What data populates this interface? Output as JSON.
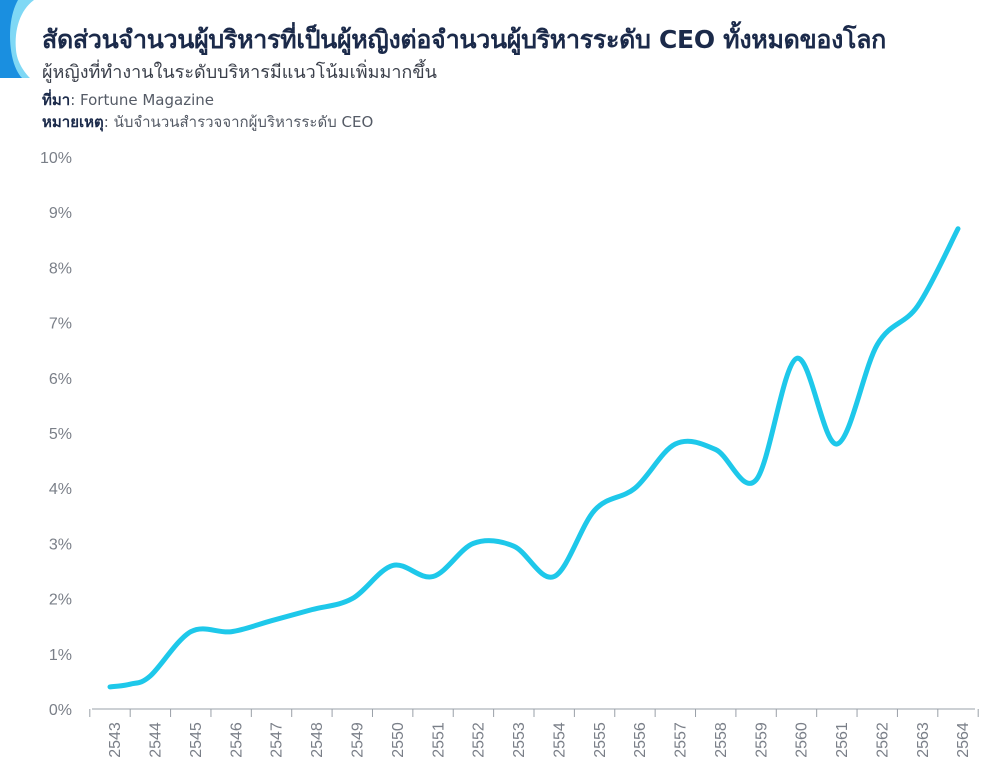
{
  "header": {
    "title": "สัดส่วนจำนวนผู้บริหารที่เป็นผู้หญิงต่อจำนวนผู้บริหารระดับ CEO ทั้งหมดของโลก",
    "subtitle": "ผู้หญิงที่ทำงานในระดับบริหารมีแนวโน้มเพิ่มมากขึ้น",
    "source_label": "ที่มา",
    "source_value": ": Fortune Magazine",
    "note_label": "หมายเหตุ",
    "note_value": ": นับจำนวนสำรวจจากผู้บริหารระดับ CEO"
  },
  "colors": {
    "line": "#1ec8ea",
    "ribbon_light": "#7fd8f5",
    "ribbon_dark": "#1a8fe0",
    "axis": "#9aa0a8",
    "text_dark": "#1b2a4a"
  },
  "chart_data": {
    "type": "line",
    "title": "สัดส่วนจำนวนผู้บริหารที่เป็นผู้หญิงต่อจำนวนผู้บริหารระดับ CEO ทั้งหมดของโลก",
    "xlabel": "",
    "ylabel": "",
    "y_unit": "%",
    "ylim": [
      0,
      10
    ],
    "yticks": [
      0,
      1,
      2,
      3,
      4,
      5,
      6,
      7,
      8,
      9,
      10
    ],
    "ytick_labels": [
      "0%",
      "1%",
      "2%",
      "3%",
      "4%",
      "5%",
      "6%",
      "7%",
      "8%",
      "9%",
      "10%"
    ],
    "grid": false,
    "legend": "none",
    "categories": [
      "2543",
      "2544",
      "2545",
      "2546",
      "2547",
      "2548",
      "2549",
      "2550",
      "2551",
      "2552",
      "2553",
      "2554",
      "2555",
      "2556",
      "2557",
      "2558",
      "2559",
      "2560",
      "2561",
      "2562",
      "2563",
      "2564"
    ],
    "points": [
      {
        "x": "2543",
        "y": 0.4
      },
      {
        "x": "2543.5",
        "y": 0.45
      },
      {
        "x": "2544",
        "y": 0.6
      },
      {
        "x": "2545",
        "y": 1.4
      },
      {
        "x": "2546",
        "y": 1.4
      },
      {
        "x": "2547",
        "y": 1.6
      },
      {
        "x": "2548",
        "y": 1.8
      },
      {
        "x": "2549",
        "y": 2.0
      },
      {
        "x": "2550",
        "y": 2.6
      },
      {
        "x": "2551",
        "y": 2.4
      },
      {
        "x": "2552",
        "y": 3.0
      },
      {
        "x": "2553",
        "y": 2.95
      },
      {
        "x": "2554",
        "y": 2.4
      },
      {
        "x": "2555",
        "y": 3.6
      },
      {
        "x": "2556",
        "y": 4.0
      },
      {
        "x": "2557",
        "y": 4.8
      },
      {
        "x": "2558",
        "y": 4.7
      },
      {
        "x": "2559",
        "y": 4.15
      },
      {
        "x": "2560",
        "y": 6.35
      },
      {
        "x": "2561",
        "y": 4.8
      },
      {
        "x": "2562",
        "y": 6.6
      },
      {
        "x": "2563",
        "y": 7.3
      },
      {
        "x": "2564",
        "y": 8.7
      }
    ]
  }
}
